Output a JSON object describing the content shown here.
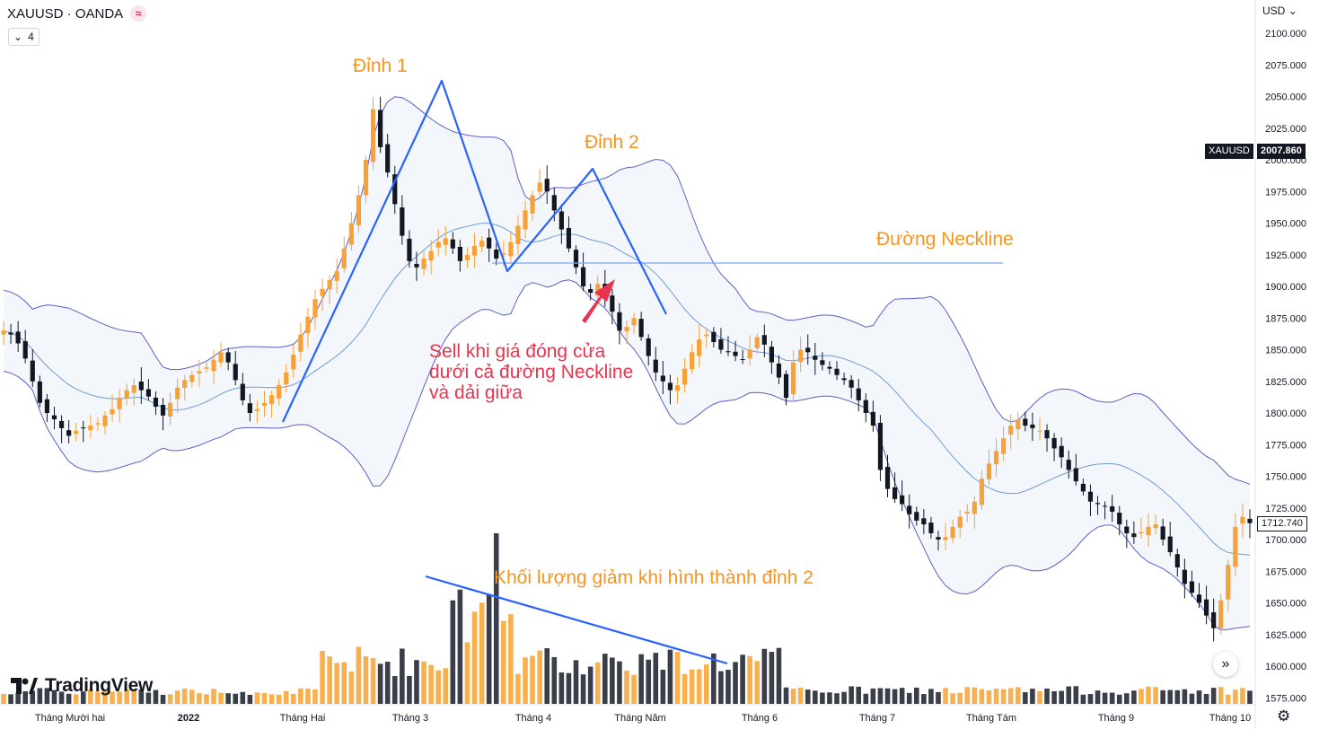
{
  "header": {
    "symbol": "XAUUSD · OANDA",
    "indicator_count": "4",
    "currency": "USD"
  },
  "branding": {
    "logo_text": "TradingView"
  },
  "price_tags": {
    "symbol_tag": "XAUUSD",
    "symbol_value": "2007.860",
    "last_value": "1712.740"
  },
  "annotations": {
    "peak1": "Đỉnh 1",
    "peak2": "Đỉnh 2",
    "neckline": "Đường Neckline",
    "sell_line1": "Sell khi giá đóng cửa",
    "sell_line2": "dưới cả đường Neckline",
    "sell_line3": "và dải giữa",
    "volume_note": "Khối lượng giảm khi hình thành đỉnh 2"
  },
  "chart_data": {
    "type": "candlestick",
    "colors": {
      "up": "#f7a136",
      "down": "#131722",
      "band": "#5c5fc4",
      "band_fill": "#f3f7fc",
      "mid": "#6f9bd8",
      "pattern": "#2962ff",
      "neckline": "#7da7f0"
    },
    "x_ticks": [
      "Tháng Mười hai",
      "2022",
      "Tháng Hai",
      "Tháng 3",
      "Tháng 4",
      "Tháng Năm",
      "Tháng 6",
      "Tháng 7",
      "Tháng Tám",
      "Tháng 9",
      "Tháng 10"
    ],
    "y_ticks": [
      "2100.000",
      "2075.000",
      "2050.000",
      "2025.000",
      "2000.000",
      "1975.000",
      "1950.000",
      "1925.000",
      "1900.000",
      "1875.000",
      "1850.000",
      "1825.000",
      "1800.000",
      "1775.000",
      "1750.000",
      "1725.000",
      "1700.000",
      "1675.000",
      "1650.000",
      "1625.000",
      "1600.000",
      "1575.000"
    ],
    "ylim": [
      1570,
      2110
    ],
    "close_path": [
      1865,
      1862,
      1855,
      1843,
      1825,
      1808,
      1800,
      1795,
      1788,
      1782,
      1786,
      1788,
      1790,
      1792,
      1798,
      1803,
      1812,
      1818,
      1822,
      1818,
      1813,
      1805,
      1798,
      1808,
      1820,
      1826,
      1830,
      1833,
      1836,
      1842,
      1848,
      1840,
      1826,
      1810,
      1800,
      1803,
      1808,
      1814,
      1822,
      1832,
      1846,
      1862,
      1876,
      1890,
      1898,
      1905,
      1912,
      1930,
      1950,
      1972,
      2000,
      2040,
      2010,
      1990,
      1965,
      1940,
      1920,
      1915,
      1922,
      1928,
      1935,
      1938,
      1930,
      1920,
      1925,
      1932,
      1936,
      1930,
      1922,
      1926,
      1935,
      1948,
      1960,
      1972,
      1982,
      1975,
      1960,
      1945,
      1930,
      1915,
      1900,
      1895,
      1902,
      1893,
      1880,
      1865,
      1868,
      1875,
      1860,
      1845,
      1832,
      1825,
      1818,
      1822,
      1835,
      1848,
      1858,
      1862,
      1856,
      1850,
      1848,
      1845,
      1842,
      1850,
      1860,
      1854,
      1840,
      1828,
      1812,
      1840,
      1850,
      1848,
      1842,
      1838,
      1835,
      1830,
      1826,
      1820,
      1810,
      1800,
      1790,
      1755,
      1740,
      1732,
      1728,
      1720,
      1715,
      1712,
      1705,
      1700,
      1702,
      1710,
      1718,
      1722,
      1730,
      1748,
      1760,
      1770,
      1780,
      1790,
      1795,
      1790,
      1788,
      1786,
      1780,
      1772,
      1765,
      1755,
      1746,
      1738,
      1730,
      1728,
      1726,
      1722,
      1712,
      1705,
      1702,
      1706,
      1710,
      1712,
      1700,
      1690,
      1678,
      1665,
      1658,
      1650,
      1640,
      1630,
      1652,
      1680,
      1710,
      1718,
      1713
    ],
    "volume_peaks": [
      {
        "label": "Tháng 3",
        "relative": 1.0
      },
      {
        "label": "Đỉnh 2",
        "relative": 0.4
      }
    ],
    "neckline_level": 1920,
    "peak1": {
      "label": "Đỉnh 1",
      "price": 2062
    },
    "peak2": {
      "label": "Đỉnh 2",
      "price": 1990
    },
    "last_price": 1712.74
  }
}
